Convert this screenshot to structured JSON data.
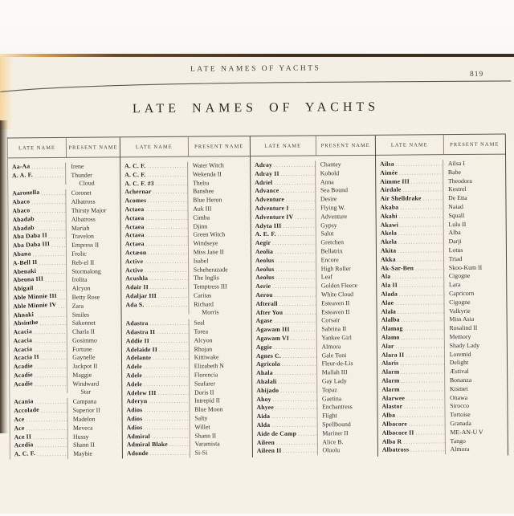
{
  "page": {
    "running_title": "LATE NAMES OF YACHTS",
    "page_number": "819",
    "title": "LATE NAMES OF YACHTS"
  },
  "table": {
    "groups": [
      {
        "late_header": "Late Name",
        "present_header": "Present Name",
        "rows": [
          {
            "late": "Aa-Aa",
            "present": "Irene"
          },
          {
            "late": "A. A. F.",
            "present": "Thunder\nCloud"
          },
          {
            "late": "Aaronella",
            "present": "Coronet",
            "gap": true
          },
          {
            "late": "Abaco",
            "present": "Albatross"
          },
          {
            "late": "Abaco",
            "present": "Thirsty Major"
          },
          {
            "late": "Abadab",
            "present": "Albatross"
          },
          {
            "late": "Abadab",
            "present": "Mariah"
          },
          {
            "late": "Aba Daba II",
            "present": "Travelon"
          },
          {
            "late": "Aba Daba III",
            "present": "Empress II"
          },
          {
            "late": "Abana",
            "present": "Frolic"
          },
          {
            "late": "A-Bell II",
            "present": "Reb-el II"
          },
          {
            "late": "Abenaki",
            "present": "Stormalong"
          },
          {
            "late": "Abeona III",
            "present": "Irolita"
          },
          {
            "late": "Abigail",
            "present": "Alcyon"
          },
          {
            "late": "Able Minnie III",
            "present": "Betty Rose"
          },
          {
            "late": "Able Minnie IV",
            "present": "Zara"
          },
          {
            "late": "Ahnaki",
            "present": "Smiles"
          },
          {
            "late": "Absinthe",
            "present": "Sakonnet"
          },
          {
            "late": "Acacia",
            "present": "Charla II"
          },
          {
            "late": "Acacia",
            "present": "Gosimmo"
          },
          {
            "late": "Acacia",
            "present": "Fortune"
          },
          {
            "late": "Acacia II",
            "present": "Gaynelle"
          },
          {
            "late": "Acadie",
            "present": "Jackpot II"
          },
          {
            "late": "Acadie",
            "present": "Maggie"
          },
          {
            "late": "Acadie",
            "present": "Windward\nStar"
          },
          {
            "late": "Acania",
            "present": "Campana",
            "gap": true
          },
          {
            "late": "Accolade",
            "present": "Superior II"
          },
          {
            "late": "Ace",
            "present": "Madelon"
          },
          {
            "late": "Ace",
            "present": "Meveca"
          },
          {
            "late": "Ace II",
            "present": "Hussy"
          },
          {
            "late": "Acedia",
            "present": "Shann II"
          },
          {
            "late": "A. C. F.",
            "present": "Maybie"
          }
        ]
      },
      {
        "late_header": "Late Name",
        "present_header": "Present Name",
        "rows": [
          {
            "late": "A. C. F.",
            "present": "Water Witch"
          },
          {
            "late": "A. C. F.",
            "present": "Wekenda II"
          },
          {
            "late": "A. C. F. #3",
            "present": "Thelra"
          },
          {
            "late": "Achernar",
            "present": "Banshee"
          },
          {
            "late": "Acomes",
            "present": "Blue Heron"
          },
          {
            "late": "Actaea",
            "present": "Auk III"
          },
          {
            "late": "Actaea",
            "present": "Cimba"
          },
          {
            "late": "Actaea",
            "present": "Djinn"
          },
          {
            "late": "Actaea",
            "present": "Green Witch"
          },
          {
            "late": "Actaea",
            "present": "Windseye"
          },
          {
            "late": "Actæon",
            "present": "Miss Jane II"
          },
          {
            "late": "Active",
            "present": "Isabel"
          },
          {
            "late": "Active",
            "present": "Scheherazade"
          },
          {
            "late": "Acushla",
            "present": "The Inglis"
          },
          {
            "late": "Adair II",
            "present": "Temptress III"
          },
          {
            "late": "Adaljar III",
            "present": "Caritas"
          },
          {
            "late": "Ada S.",
            "present": "Richard\nMorris"
          },
          {
            "late": "Adastra",
            "present": "Seal",
            "gap": true
          },
          {
            "late": "Adastra II",
            "present": "Torea"
          },
          {
            "late": "Addie II",
            "present": "Alcyon"
          },
          {
            "late": "Adelaide II",
            "present": "Rhojan"
          },
          {
            "late": "Adelante",
            "present": "Kittiwake"
          },
          {
            "late": "Adele",
            "present": "Elizabeth N"
          },
          {
            "late": "Adele",
            "present": "Florencia"
          },
          {
            "late": "Adele",
            "present": "Seafarer"
          },
          {
            "late": "Adelew III",
            "present": "Doris II"
          },
          {
            "late": "Aderyn",
            "present": "Intrepid II"
          },
          {
            "late": "Adios",
            "present": "Blue Moon"
          },
          {
            "late": "Adios",
            "present": "Salty"
          },
          {
            "late": "Adios",
            "present": "Willet"
          },
          {
            "late": "Admiral",
            "present": "Shann II"
          },
          {
            "late": "Admiral Blake",
            "present": "Varamista"
          },
          {
            "late": "Adonde",
            "present": "Si-Si"
          }
        ]
      },
      {
        "late_header": "Late Name",
        "present_header": "Present Name",
        "rows": [
          {
            "late": "Adray",
            "present": "Chantey"
          },
          {
            "late": "Adray II",
            "present": "Kobold"
          },
          {
            "late": "Adriel",
            "present": "Anna"
          },
          {
            "late": "Advance",
            "present": "Sea Bound"
          },
          {
            "late": "Adventure",
            "present": "Desire"
          },
          {
            "late": "Adventure I",
            "present": "Flying W."
          },
          {
            "late": "Adventure IV",
            "present": "Adventure"
          },
          {
            "late": "Adyta III",
            "present": "Gypsy"
          },
          {
            "late": "A. E. F.",
            "present": "Salut"
          },
          {
            "late": "Aegir",
            "present": "Gretchen"
          },
          {
            "late": "Aeolia",
            "present": "Bellatrix"
          },
          {
            "late": "Aeolus",
            "present": "Encore"
          },
          {
            "late": "Aeolus",
            "present": "High Roller"
          },
          {
            "late": "Aeolus",
            "present": "Leaf"
          },
          {
            "late": "Aerie",
            "present": "Golden Fleece"
          },
          {
            "late": "Aerou",
            "present": "White Cloud"
          },
          {
            "late": "Afterall",
            "present": "Esteaven II"
          },
          {
            "late": "After You",
            "present": "Esteaven II"
          },
          {
            "late": "Agase",
            "present": "Corsair"
          },
          {
            "late": "Agawam III",
            "present": "Sabrina II"
          },
          {
            "late": "Agawam VI",
            "present": "Yankee Girl"
          },
          {
            "late": "Aggie",
            "present": "Almora"
          },
          {
            "late": "Agnes C.",
            "present": "Gale Toni"
          },
          {
            "late": "Agricola",
            "present": "Fleur-de-Lis"
          },
          {
            "late": "Ahala",
            "present": "Mallah III"
          },
          {
            "late": "Ahalali",
            "present": "Gay Lady"
          },
          {
            "late": "Ahijado",
            "present": "Topaz"
          },
          {
            "late": "Ahoy",
            "present": "Gaetina"
          },
          {
            "late": "Ahyee",
            "present": "Enchantress"
          },
          {
            "late": "Aida",
            "present": "Flight"
          },
          {
            "late": "Alda",
            "present": "Spellbound"
          },
          {
            "late": "Aide de Camp",
            "present": "Mariner II"
          },
          {
            "late": "Aileen",
            "present": "Alice B."
          },
          {
            "late": "Aileen II",
            "present": "Oluolu"
          }
        ]
      },
      {
        "late_header": "Late Name",
        "present_header": "Present Name",
        "rows": [
          {
            "late": "Ailsa",
            "present": "Ailsa I"
          },
          {
            "late": "Aimée",
            "present": "Babe"
          },
          {
            "late": "Aimme III",
            "present": "Theodora"
          },
          {
            "late": "Airdale",
            "present": "Kestrel"
          },
          {
            "late": "Air Shelldrake",
            "present": "De Etta"
          },
          {
            "late": "Akaba",
            "present": "Naiad"
          },
          {
            "late": "Akahi",
            "present": "Squall"
          },
          {
            "late": "Akawi",
            "present": "Lulu II"
          },
          {
            "late": "Akela",
            "present": "Alba"
          },
          {
            "late": "Akela",
            "present": "Darji"
          },
          {
            "late": "Akita",
            "present": "Lotus"
          },
          {
            "late": "Akka",
            "present": "Triad"
          },
          {
            "late": "Ak-Sar-Ben",
            "present": "Skoo-Kum II"
          },
          {
            "late": "Ala",
            "present": "Cigogne"
          },
          {
            "late": "Ala II",
            "present": "Lara"
          },
          {
            "late": "Alada",
            "present": "Capricorn"
          },
          {
            "late": "Alae",
            "present": "Cigogne"
          },
          {
            "late": "Alala",
            "present": "Valkyrie"
          },
          {
            "late": "Alalba",
            "present": "Miss Asia"
          },
          {
            "late": "Alamag",
            "present": "Rosalind II"
          },
          {
            "late": "Alamo",
            "present": "Memory"
          },
          {
            "late": "Alar",
            "present": "Shady Lady"
          },
          {
            "late": "Alara II",
            "present": "Loremid"
          },
          {
            "late": "Alaris",
            "present": "Delight"
          },
          {
            "late": "Alarm",
            "present": "Æstival"
          },
          {
            "late": "Alarm",
            "present": "Bonanza"
          },
          {
            "late": "Alarm",
            "present": "Kismet"
          },
          {
            "late": "Alarwee",
            "present": "Onawa"
          },
          {
            "late": "Alastor",
            "present": "Sirocco"
          },
          {
            "late": "Alba",
            "present": "Tortoise"
          },
          {
            "late": "Albacore",
            "present": "Granada"
          },
          {
            "late": "Albacore II",
            "present": "ME-AN-U V"
          },
          {
            "late": "Alba R",
            "present": "Tango"
          },
          {
            "late": "Albatross",
            "present": "Almora"
          }
        ]
      }
    ]
  }
}
